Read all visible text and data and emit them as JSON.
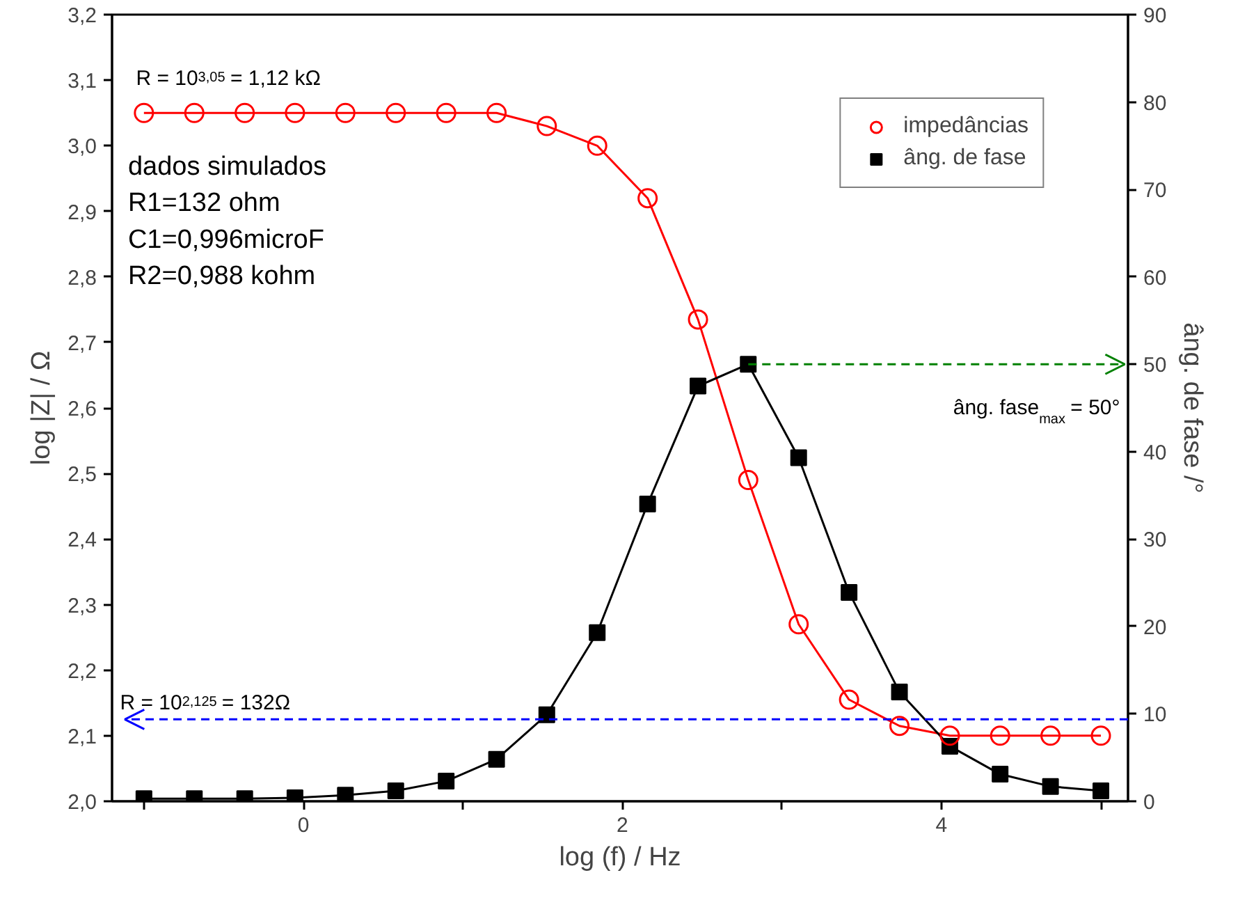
{
  "chart_data": {
    "type": "line",
    "xlabel": "log (f) / Hz",
    "ylabel": "log |Z| / Ω",
    "y2label": "âng. de fase /°",
    "x": [
      -1.0,
      -0.684,
      -0.368,
      -0.053,
      0.263,
      0.579,
      0.895,
      1.211,
      1.526,
      1.842,
      2.158,
      2.474,
      2.789,
      3.105,
      3.421,
      3.737,
      4.053,
      4.368,
      4.684,
      5.0
    ],
    "series": [
      {
        "name": "impedâncias",
        "color": "#ff0000",
        "marker": "circle",
        "values": [
          3.05,
          3.05,
          3.05,
          3.05,
          3.05,
          3.05,
          3.05,
          3.05,
          3.03,
          3.0,
          2.92,
          2.735,
          2.49,
          2.27,
          2.155,
          2.115,
          2.1,
          2.1,
          2.1,
          2.1
        ]
      },
      {
        "name": "âng. de fase",
        "color": "#000000",
        "marker": "square",
        "axis": "y2",
        "values": [
          0.3,
          0.3,
          0.3,
          0.4,
          0.7,
          1.2,
          2.3,
          4.8,
          9.9,
          19.3,
          34,
          47.5,
          50,
          39.3,
          23.9,
          12.5,
          6.3,
          3.1,
          1.7,
          1.2
        ]
      }
    ],
    "xlim": [
      -1.2,
      5.17
    ],
    "xticks": [
      {
        "value": -1,
        "label": null
      },
      0,
      {
        "value": 1,
        "label": null
      },
      2,
      {
        "value": 3,
        "label": null
      },
      4,
      {
        "value": 5,
        "label": null
      }
    ],
    "ylim": [
      2.0,
      3.2
    ],
    "yticks": [
      {
        "value": 2.0,
        "label": "2,0"
      },
      {
        "value": 2.1,
        "label": "2,1"
      },
      {
        "value": 2.2,
        "label": "2,2"
      },
      {
        "value": 2.3,
        "label": "2,3"
      },
      {
        "value": 2.4,
        "label": "2,4"
      },
      {
        "value": 2.5,
        "label": "2,5"
      },
      {
        "value": 2.6,
        "label": "2,6"
      },
      {
        "value": 2.7,
        "label": "2,7"
      },
      {
        "value": 2.8,
        "label": "2,8"
      },
      {
        "value": 2.9,
        "label": "2,9"
      },
      {
        "value": 3.0,
        "label": "3,0"
      },
      {
        "value": 3.1,
        "label": "3,1"
      },
      {
        "value": 3.2,
        "label": "3,2"
      }
    ],
    "y2lim": [
      0,
      90
    ],
    "y2ticks": [
      0,
      10,
      20,
      30,
      40,
      50,
      60,
      70,
      80,
      90
    ],
    "ref_lines": [
      {
        "axis": "y",
        "value": 2.125,
        "label": "R = 10$^{2,125}$ = 132Ω",
        "color": "#0000ff",
        "line_style": "dashed"
      },
      {
        "axis": "y2",
        "value": 50,
        "label": "âng. fase$_{max}$ = 50°",
        "color": "#008000",
        "line_style": "dashed"
      }
    ],
    "annotations": [
      {
        "text": "R = 10$^{3,05}$ = 1,12 kΩ",
        "x": -1.0,
        "y": 3.05
      },
      "dados simulados\nR1=132 ohm\nC1=0,996microF\nR2=0,988 kohm"
    ],
    "legend": "top right",
    "grid": false,
    "line_style": "solid"
  }
}
